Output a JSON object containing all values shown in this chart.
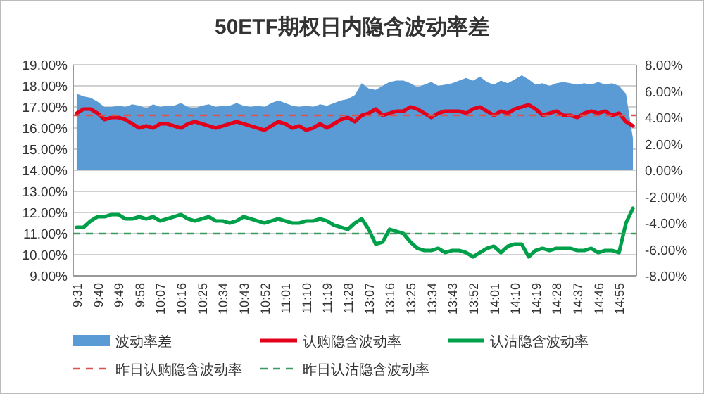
{
  "chart_data": {
    "type": "line",
    "title": "50ETF期权日内隐含波动率差",
    "categories": [
      "9:31",
      null,
      null,
      "9:40",
      null,
      null,
      "9:49",
      null,
      null,
      "9:58",
      null,
      null,
      "10:07",
      null,
      null,
      "10:16",
      null,
      null,
      "10:25",
      null,
      null,
      "10:34",
      null,
      null,
      "10:43",
      null,
      null,
      "10:52",
      null,
      null,
      "11:01",
      null,
      null,
      "11:10",
      null,
      null,
      "11:19",
      null,
      null,
      "11:28",
      null,
      null,
      "13:07",
      null,
      null,
      "13:16",
      null,
      null,
      "13:25",
      null,
      null,
      "13:34",
      null,
      null,
      "13:43",
      null,
      null,
      "13:52",
      null,
      null,
      "14:01",
      null,
      null,
      "14:10",
      null,
      null,
      "14:19",
      null,
      null,
      "14:28",
      null,
      null,
      "14:37",
      null,
      null,
      "14:46",
      null,
      null,
      "14:55",
      null,
      null
    ],
    "series": [
      {
        "name": "波动率差",
        "type": "area",
        "axis": "y2",
        "color": "#5b9bd5",
        "values": [
          5.8,
          5.6,
          5.5,
          5.2,
          4.8,
          4.8,
          4.9,
          4.8,
          5.0,
          4.9,
          4.7,
          5.0,
          4.8,
          4.9,
          4.9,
          5.1,
          4.8,
          4.7,
          4.9,
          5.0,
          4.8,
          4.9,
          4.9,
          5.1,
          4.9,
          4.8,
          4.9,
          4.8,
          5.1,
          5.3,
          5.1,
          4.9,
          4.8,
          4.9,
          4.8,
          5.0,
          4.9,
          5.1,
          5.3,
          5.4,
          5.7,
          6.6,
          6.2,
          6.1,
          6.4,
          6.7,
          6.8,
          6.8,
          6.6,
          6.3,
          6.5,
          6.7,
          6.4,
          6.5,
          6.6,
          6.8,
          7.0,
          6.8,
          7.1,
          6.7,
          6.5,
          6.8,
          6.6,
          6.9,
          7.2,
          6.9,
          6.5,
          6.6,
          6.4,
          6.6,
          6.7,
          6.6,
          6.5,
          6.6,
          6.5,
          6.7,
          6.5,
          6.6,
          6.4,
          5.8,
          2.4
        ]
      },
      {
        "name": "认购隐含波动率",
        "color": "#e3001b",
        "values": [
          16.7,
          16.9,
          16.9,
          16.7,
          16.4,
          16.5,
          16.5,
          16.4,
          16.2,
          16.0,
          16.1,
          16.0,
          16.2,
          16.2,
          16.1,
          16.0,
          16.2,
          16.3,
          16.2,
          16.1,
          16.0,
          16.1,
          16.2,
          16.3,
          16.2,
          16.1,
          16.0,
          15.9,
          16.1,
          16.3,
          16.2,
          16.0,
          16.1,
          15.9,
          16.0,
          16.2,
          16.0,
          16.2,
          16.4,
          16.5,
          16.3,
          16.6,
          16.7,
          16.9,
          16.6,
          16.7,
          16.8,
          16.8,
          17.0,
          16.9,
          16.7,
          16.5,
          16.7,
          16.8,
          16.8,
          16.8,
          16.7,
          16.9,
          17.0,
          16.8,
          16.6,
          16.8,
          16.7,
          16.9,
          17.0,
          17.1,
          16.9,
          16.6,
          16.7,
          16.8,
          16.6,
          16.6,
          16.5,
          16.7,
          16.8,
          16.7,
          16.8,
          16.6,
          16.7,
          16.3,
          16.1
        ]
      },
      {
        "name": "认沽隐含波动率",
        "color": "#00a04a",
        "values": [
          11.3,
          11.3,
          11.6,
          11.8,
          11.8,
          11.9,
          11.9,
          11.7,
          11.7,
          11.8,
          11.7,
          11.8,
          11.6,
          11.7,
          11.8,
          11.9,
          11.7,
          11.6,
          11.7,
          11.8,
          11.6,
          11.6,
          11.5,
          11.6,
          11.8,
          11.7,
          11.6,
          11.5,
          11.6,
          11.7,
          11.6,
          11.5,
          11.5,
          11.6,
          11.6,
          11.7,
          11.6,
          11.4,
          11.3,
          11.2,
          11.5,
          11.7,
          11.2,
          10.5,
          10.6,
          11.2,
          11.1,
          11.0,
          10.6,
          10.3,
          10.2,
          10.2,
          10.3,
          10.1,
          10.2,
          10.2,
          10.1,
          9.9,
          10.1,
          10.3,
          10.4,
          10.1,
          10.4,
          10.5,
          10.5,
          9.9,
          10.2,
          10.3,
          10.2,
          10.3,
          10.3,
          10.3,
          10.2,
          10.2,
          10.3,
          10.1,
          10.2,
          10.2,
          10.1,
          11.5,
          12.2
        ]
      }
    ],
    "ref_lines": [
      {
        "axis": "y",
        "value": 16.6,
        "label": "昨日认购隐含波动率",
        "color": "#d9534f",
        "line_style": "dashed"
      },
      {
        "axis": "y",
        "value": 11.0,
        "label": "昨日认沽隐含波动率",
        "color": "#3c9a5f",
        "line_style": "dashed"
      }
    ],
    "ylim": [
      9,
      19
    ],
    "yticks": [
      {
        "value": 9,
        "label": "9.00%"
      },
      {
        "value": 10,
        "label": "10.00%"
      },
      {
        "value": 11,
        "label": "11.00%"
      },
      {
        "value": 12,
        "label": "12.00%"
      },
      {
        "value": 13,
        "label": "13.00%"
      },
      {
        "value": 14,
        "label": "14.00%"
      },
      {
        "value": 15,
        "label": "15.00%"
      },
      {
        "value": 16,
        "label": "16.00%"
      },
      {
        "value": 17,
        "label": "17.00%"
      },
      {
        "value": 18,
        "label": "18.00%"
      },
      {
        "value": 19,
        "label": "19.00%"
      }
    ],
    "y2lim": [
      -8,
      8
    ],
    "y2ticks": [
      {
        "value": -8,
        "label": "-8.00%"
      },
      {
        "value": -6,
        "label": "-6.00%"
      },
      {
        "value": -4,
        "label": "-4.00%"
      },
      {
        "value": -2,
        "label": "-2.00%"
      },
      {
        "value": 0,
        "label": "0.00%"
      },
      {
        "value": 2,
        "label": "2.00%"
      },
      {
        "value": 4,
        "label": "4.00%"
      },
      {
        "value": 6,
        "label": "6.00%"
      },
      {
        "value": 8,
        "label": "8.00%"
      }
    ],
    "grid": "y",
    "legend": "bottom"
  }
}
